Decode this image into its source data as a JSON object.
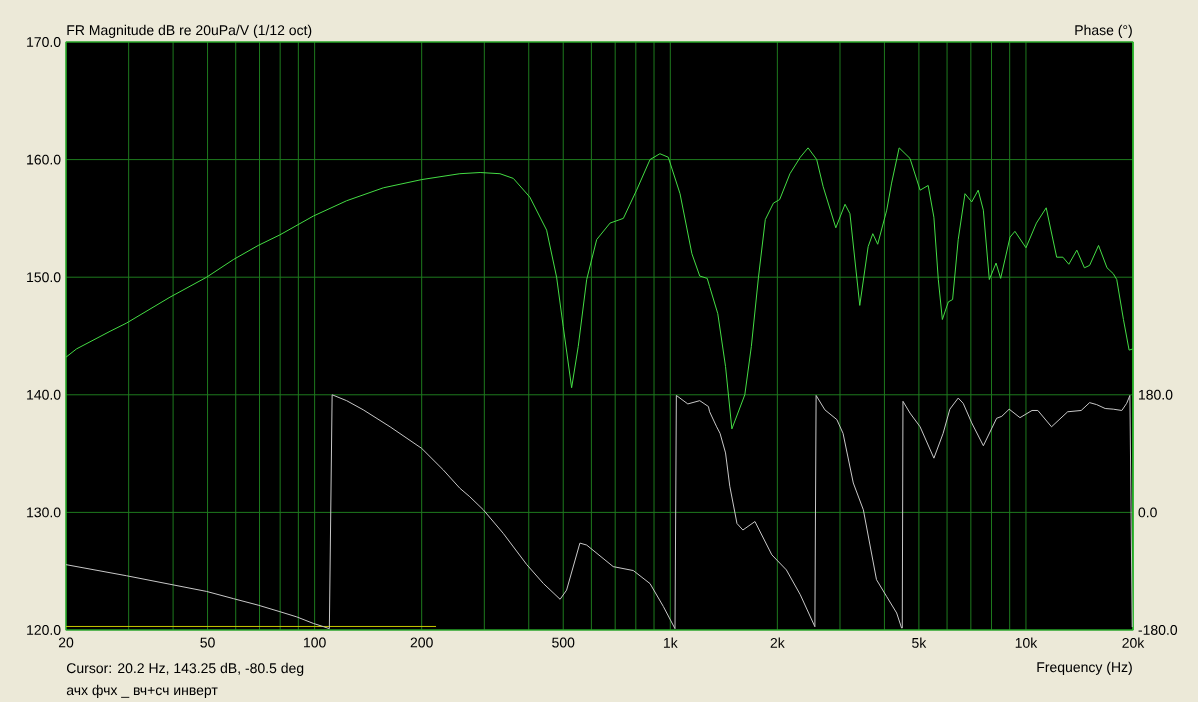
{
  "chart_data": {
    "type": "line",
    "ylabel": "FR Magnitude dB re 20uPa/V (1/12 oct)",
    "y2label": "Phase (°)",
    "xlabel": "Frequency (Hz)",
    "annotations": [
      "Cursor: 20.2 Hz, 143.25 dB, -80.5 deg",
      "ачх фчх _ вч+сч инверт"
    ],
    "log": "x",
    "grid": true,
    "line_style": "solid",
    "xlim": [
      20,
      20000
    ],
    "xticks": [
      20,
      {
        "value": 30,
        "label": null
      },
      {
        "value": 40,
        "label": null
      },
      50,
      {
        "value": 60,
        "label": null
      },
      {
        "value": 70,
        "label": null
      },
      {
        "value": 80,
        "label": null
      },
      {
        "value": 90,
        "label": null
      },
      100,
      200,
      {
        "value": 300,
        "label": null
      },
      {
        "value": 400,
        "label": null
      },
      500,
      {
        "value": 600,
        "label": null
      },
      {
        "value": 700,
        "label": null
      },
      {
        "value": 800,
        "label": null
      },
      {
        "value": 900,
        "label": null
      },
      {
        "value": 1000,
        "label": "1k"
      },
      {
        "value": 2000,
        "label": "2k"
      },
      {
        "value": 3000,
        "label": null
      },
      {
        "value": 4000,
        "label": null
      },
      {
        "value": 5000,
        "label": "5k"
      },
      {
        "value": 6000,
        "label": null
      },
      {
        "value": 7000,
        "label": null
      },
      {
        "value": 8000,
        "label": null
      },
      {
        "value": 9000,
        "label": null
      },
      {
        "value": 10000,
        "label": "10k"
      },
      {
        "value": 20000,
        "label": "20k"
      }
    ],
    "ylim": [
      120,
      170
    ],
    "yticks": [
      {
        "value": 120,
        "label": "120.0"
      },
      {
        "value": 130,
        "label": "130.0"
      },
      {
        "value": 140,
        "label": "140.0"
      },
      {
        "value": 150,
        "label": "150.0"
      },
      {
        "value": 160,
        "label": "160.0"
      },
      {
        "value": 170,
        "label": "170.0"
      }
    ],
    "y2lim": [
      -180,
      720
    ],
    "y2ticks": [
      {
        "value": -180,
        "label": "-180.0"
      },
      {
        "value": 0,
        "label": "0.0"
      },
      {
        "value": 180,
        "label": "180.0"
      }
    ],
    "series": [
      {
        "color": "#44dd44",
        "x": [
          20,
          21.4,
          26.6,
          29.6,
          39.2,
          49.7,
          59.1,
          69.4,
          79.9,
          99.2,
          123,
          156,
          200,
          256,
          292,
          332,
          362,
          403,
          449,
          479,
          500,
          528,
          551,
          582,
          621,
          677,
          738,
          804,
          877,
          935,
          987,
          1065,
          1150,
          1210,
          1270,
          1290,
          1360,
          1430,
          1490,
          1620,
          1690,
          1770,
          1850,
          1950,
          2030,
          2170,
          2320,
          2440,
          2580,
          2690,
          2920,
          3100,
          3200,
          3410,
          3600,
          3710,
          3830,
          4060,
          4190,
          4400,
          4720,
          5040,
          5310,
          5510,
          5670,
          5820,
          6050,
          6220,
          6450,
          6740,
          7040,
          7340,
          7590,
          7890,
          8240,
          8490,
          9020,
          9310,
          10000,
          10700,
          11400,
          12200,
          12700,
          13200,
          13900,
          14600,
          15100,
          16000,
          16900,
          17600,
          18000,
          18800,
          19500,
          20000
        ],
        "values": [
          143.2,
          143.9,
          145.4,
          146.1,
          148.3,
          150.0,
          151.5,
          152.7,
          153.6,
          155.2,
          156.5,
          157.6,
          158.3,
          158.8,
          158.9,
          158.8,
          158.4,
          156.8,
          154.0,
          150.0,
          145.8,
          140.6,
          144.1,
          149.8,
          153.2,
          154.6,
          155.0,
          157.4,
          160.0,
          160.5,
          160.2,
          157.1,
          152.0,
          150.1,
          149.9,
          149.2,
          146.9,
          142.4,
          137.1,
          140.0,
          144.1,
          150.0,
          154.9,
          156.3,
          156.6,
          158.8,
          160.2,
          161.0,
          160.0,
          157.7,
          154.2,
          156.2,
          155.4,
          147.6,
          152.6,
          153.7,
          152.8,
          155.7,
          158.0,
          161.0,
          160.1,
          157.4,
          157.8,
          155.1,
          149.8,
          146.4,
          147.9,
          148.1,
          153.2,
          157.1,
          156.4,
          157.4,
          155.7,
          149.8,
          151.2,
          149.9,
          153.4,
          153.9,
          152.5,
          154.6,
          155.9,
          151.7,
          151.7,
          151.1,
          152.3,
          150.8,
          151.0,
          152.7,
          150.8,
          150.3,
          149.8,
          146.4,
          143.8,
          143.9
        ]
      },
      {
        "color": "#c8c8c8",
        "axis": "y2",
        "x": [
          20,
          29.6,
          39.2,
          49.7,
          59.1,
          69.4,
          79.9,
          89.1,
          99.2,
          106,
          110,
          112,
          123,
          137,
          163,
          200,
          230,
          256,
          273,
          298,
          339,
          395,
          440,
          490,
          511,
          557,
          582,
          691,
          787,
          877,
          956,
          1031,
          1040,
          1120,
          1210,
          1280,
          1290,
          1350,
          1380,
          1430,
          1470,
          1540,
          1600,
          1730,
          1930,
          2120,
          2320,
          2550,
          2570,
          2720,
          2940,
          3060,
          3270,
          3490,
          3800,
          4060,
          4330,
          4470,
          4490,
          4510,
          4720,
          5040,
          5510,
          5850,
          6110,
          6450,
          6660,
          7040,
          7590,
          8270,
          8550,
          8970,
          9620,
          10400,
          10800,
          11800,
          13100,
          14300,
          15100,
          15800,
          16700,
          17600,
          18600,
          19200,
          19600,
          19900
        ],
        "values": [
          -80,
          -97,
          -110,
          -121,
          -132,
          -142,
          -152,
          -160,
          -170,
          -175,
          -178,
          180,
          171,
          157,
          131,
          98,
          65,
          37,
          24,
          4,
          -32,
          -80,
          -109,
          -133,
          -119,
          -47,
          -50,
          -83,
          -89,
          -109,
          -144,
          -178,
          179,
          166,
          171,
          162,
          154,
          131,
          121,
          91,
          40,
          -17,
          -27,
          -14,
          -65,
          -88,
          -126,
          -175,
          179,
          157,
          142,
          121,
          45,
          4,
          -103,
          -129,
          -154,
          -177,
          -177,
          170,
          152,
          131,
          83,
          121,
          158,
          175,
          167,
          137,
          102,
          144,
          147,
          158,
          145,
          156,
          156,
          131,
          154,
          156,
          168,
          165,
          159,
          158,
          156,
          167,
          179,
          -175
        ]
      },
      {
        "color": "#c8c800",
        "x": [
          20,
          219
        ],
        "values": [
          120.3,
          120.3
        ]
      }
    ]
  }
}
